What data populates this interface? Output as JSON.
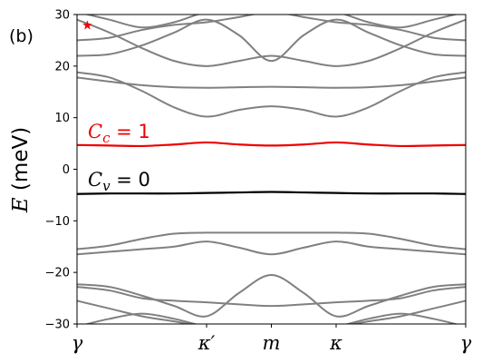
{
  "panel_label": "(b)",
  "chart_data": {
    "type": "line",
    "ylabel": {
      "var": "E",
      "unit": " (meV)"
    },
    "ylim": [
      -30,
      30
    ],
    "yticks": [
      -30,
      -20,
      -10,
      0,
      10,
      20,
      30
    ],
    "xlim": [
      0,
      3
    ],
    "xticks": [
      {
        "pos": 0,
        "var": "γ",
        "prime": ""
      },
      {
        "pos": 1,
        "var": "κ",
        "prime": "′"
      },
      {
        "pos": 1.5,
        "var": "m",
        "prime": ""
      },
      {
        "pos": 2,
        "var": "κ",
        "prime": ""
      },
      {
        "pos": 3,
        "var": "γ",
        "prime": ""
      }
    ],
    "colors": {
      "conduction": "#ee0000",
      "valence": "#000000",
      "remote": "#808080"
    },
    "x": [
      0,
      0.25,
      0.5,
      0.75,
      1,
      1.25,
      1.5,
      1.75,
      2,
      2.25,
      2.5,
      2.75,
      3
    ],
    "series": [
      {
        "role": "conduction",
        "values": [
          4.7,
          4.6,
          4.5,
          4.8,
          5.2,
          4.8,
          4.6,
          4.8,
          5.2,
          4.8,
          4.5,
          4.6,
          4.7
        ]
      },
      {
        "role": "valence",
        "values": [
          -4.8,
          -4.7,
          -4.7,
          -4.7,
          -4.6,
          -4.5,
          -4.4,
          -4.5,
          -4.6,
          -4.7,
          -4.7,
          -4.7,
          -4.8
        ]
      },
      {
        "role": "remote",
        "values": [
          17.8,
          17.0,
          16.3,
          15.9,
          15.8,
          15.9,
          16.0,
          15.9,
          15.8,
          15.9,
          16.3,
          17.0,
          17.8
        ]
      },
      {
        "role": "remote",
        "values": [
          18.8,
          17.8,
          15.2,
          12.0,
          10.2,
          11.5,
          12.2,
          11.5,
          10.2,
          12.0,
          15.2,
          17.8,
          18.8
        ]
      },
      {
        "role": "remote",
        "values": [
          22.0,
          22.3,
          24.0,
          26.5,
          29.0,
          26.0,
          21.0,
          26.0,
          29.0,
          26.5,
          24.0,
          22.3,
          22.0
        ]
      },
      {
        "role": "remote",
        "values": [
          25.0,
          25.5,
          27.0,
          28.0,
          28.5,
          29.5,
          30.5,
          29.5,
          28.5,
          28.0,
          27.0,
          25.5,
          25.0
        ]
      },
      {
        "role": "remote",
        "values": [
          29.0,
          26.5,
          23.5,
          21.0,
          20.0,
          21.0,
          22.0,
          21.0,
          20.0,
          21.0,
          23.5,
          26.5,
          29.0
        ]
      },
      {
        "role": "remote",
        "values": [
          -15.5,
          -14.8,
          -13.5,
          -12.5,
          -12.3,
          -12.3,
          -12.3,
          -12.3,
          -12.3,
          -12.5,
          -13.5,
          -14.8,
          -15.5
        ]
      },
      {
        "role": "remote",
        "values": [
          -16.5,
          -16.0,
          -15.5,
          -15.0,
          -14.0,
          -15.2,
          -16.5,
          -15.2,
          -14.0,
          -15.0,
          -15.5,
          -16.0,
          -16.5
        ]
      },
      {
        "role": "remote",
        "values": [
          -22.3,
          -22.8,
          -24.5,
          -26.5,
          -28.5,
          -24.0,
          -20.5,
          -24.0,
          -28.5,
          -26.5,
          -24.5,
          -22.8,
          -22.3
        ]
      },
      {
        "role": "remote",
        "values": [
          -22.8,
          -23.5,
          -25.0,
          -25.5,
          -25.8,
          -26.2,
          -26.5,
          -26.2,
          -25.8,
          -25.5,
          -25.0,
          -23.5,
          -22.8
        ]
      },
      {
        "role": "remote",
        "values": [
          -25.5,
          -27.0,
          -28.5,
          -29.5,
          -30.5,
          -30.5,
          -30.5,
          -30.5,
          -30.5,
          -29.5,
          -28.5,
          -27.0,
          -25.5
        ]
      },
      {
        "role": "remote",
        "values": [
          -30.5,
          -29.0,
          -28.0,
          -29.0,
          -30.5,
          -31.0,
          -31.0,
          -31.0,
          -30.5,
          -29.0,
          -28.0,
          -29.0,
          -30.5
        ]
      },
      {
        "role": "remote",
        "values": [
          30.5,
          29.0,
          27.5,
          28.5,
          30.5,
          31.0,
          31.0,
          31.0,
          30.5,
          28.5,
          27.5,
          29.0,
          30.5
        ]
      }
    ],
    "annotations": [
      {
        "role": "conduction",
        "var": "C",
        "sub": "c",
        "rest": " = 1"
      },
      {
        "role": "valence",
        "var": "C",
        "sub": "v",
        "rest": " = 0"
      }
    ],
    "marker": {
      "symbol": "★",
      "x": 0.08,
      "y": 28
    }
  }
}
